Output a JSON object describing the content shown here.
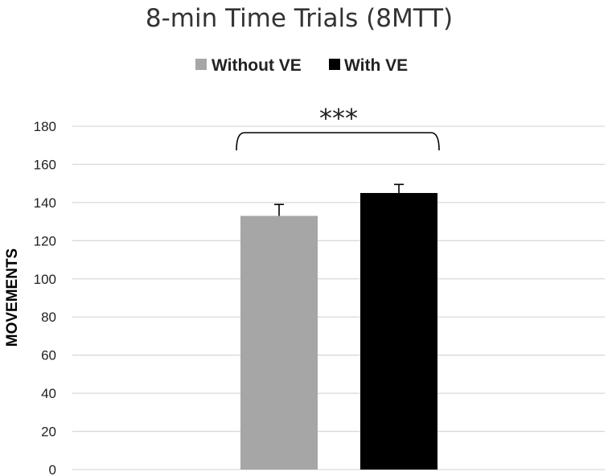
{
  "chart_data": {
    "type": "bar",
    "title": "8-min Time Trials (8MTT)",
    "ylabel": "MOVEMENTS",
    "xlabel": "",
    "ylim": [
      0,
      180
    ],
    "yticks": [
      0,
      20,
      40,
      60,
      80,
      100,
      120,
      140,
      160,
      180
    ],
    "grid": true,
    "legend_position": "top-center",
    "series": [
      {
        "name": "Without VE",
        "value": 133,
        "error": 6,
        "color": "#a6a6a6"
      },
      {
        "name": "With VE",
        "value": 145,
        "error": 4.5,
        "color": "#000000"
      }
    ],
    "annotation": "***"
  }
}
